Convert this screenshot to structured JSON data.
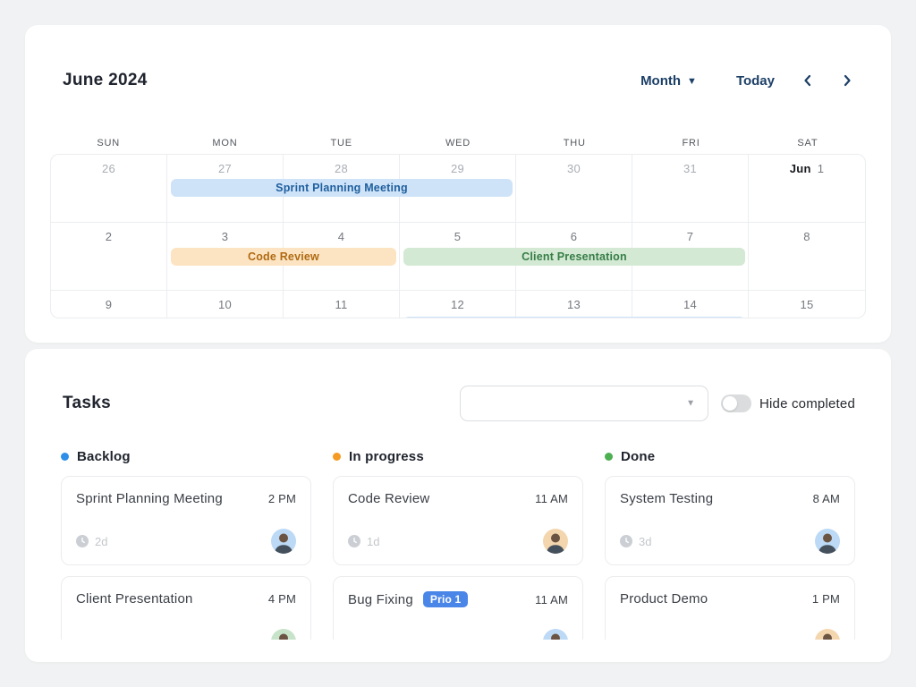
{
  "calendar": {
    "title": "June 2024",
    "view_label": "Month",
    "today_label": "Today",
    "day_headers": [
      "SUN",
      "MON",
      "TUE",
      "WED",
      "THU",
      "FRI",
      "SAT"
    ],
    "weeks": [
      {
        "days": [
          {
            "label": "26",
            "muted": true
          },
          {
            "label": "27",
            "muted": true
          },
          {
            "label": "28",
            "muted": true
          },
          {
            "label": "29",
            "muted": true
          },
          {
            "label": "30",
            "muted": true
          },
          {
            "label": "31",
            "muted": true
          },
          {
            "label": "1",
            "prefix": "Jun",
            "muted": false
          }
        ]
      },
      {
        "days": [
          {
            "label": "2"
          },
          {
            "label": "3"
          },
          {
            "label": "4"
          },
          {
            "label": "5"
          },
          {
            "label": "6"
          },
          {
            "label": "7"
          },
          {
            "label": "8"
          }
        ]
      },
      {
        "days": [
          {
            "label": "9"
          },
          {
            "label": "10"
          },
          {
            "label": "11"
          },
          {
            "label": "12"
          },
          {
            "label": "13"
          },
          {
            "label": "14"
          },
          {
            "label": "15"
          }
        ]
      }
    ],
    "events": [
      {
        "title": "Sprint Planning Meeting",
        "row": 0,
        "col_start": 1,
        "span": 3,
        "color": "blue"
      },
      {
        "title": "Code Review",
        "row": 1,
        "col_start": 1,
        "span": 2,
        "color": "orange"
      },
      {
        "title": "Client Presentation",
        "row": 1,
        "col_start": 3,
        "span": 3,
        "color": "green"
      },
      {
        "title": "",
        "row": 2,
        "col_start": 3,
        "span": 3,
        "color": "blue"
      }
    ],
    "event_colors": {
      "blue": {
        "bg": "#cfe3f8",
        "text": "#1f5f9e"
      },
      "orange": {
        "bg": "#fce4c3",
        "text": "#b06a12"
      },
      "green": {
        "bg": "#d3e9d4",
        "text": "#377d46"
      }
    }
  },
  "tasks": {
    "title": "Tasks",
    "filter_value": "",
    "toggle_label": "Hide completed",
    "toggle_on": false,
    "badge_color": "#4a86e8",
    "columns": [
      {
        "name": "Backlog",
        "dot_color": "#2e8fe8",
        "cards": [
          {
            "title": "Sprint Planning Meeting",
            "time": "2 PM",
            "duration": "2d",
            "avatar_bg": "#bcd9f5"
          },
          {
            "title": "Client Presentation",
            "time": "4 PM",
            "duration": "",
            "avatar_bg": "#c7e3c9"
          }
        ]
      },
      {
        "name": "In progress",
        "dot_color": "#f59a23",
        "cards": [
          {
            "title": "Code Review",
            "time": "11 AM",
            "duration": "1d",
            "avatar_bg": "#f3d6ae"
          },
          {
            "title": "Bug Fixing",
            "badge": "Prio 1",
            "time": "11 AM",
            "duration": "",
            "avatar_bg": "#bcd9f5"
          }
        ]
      },
      {
        "name": "Done",
        "dot_color": "#4caf50",
        "cards": [
          {
            "title": "System Testing",
            "time": "8 AM",
            "duration": "3d",
            "avatar_bg": "#bcd9f5"
          },
          {
            "title": "Product Demo",
            "time": "1 PM",
            "duration": "",
            "avatar_bg": "#f3d6ae"
          }
        ]
      }
    ]
  }
}
